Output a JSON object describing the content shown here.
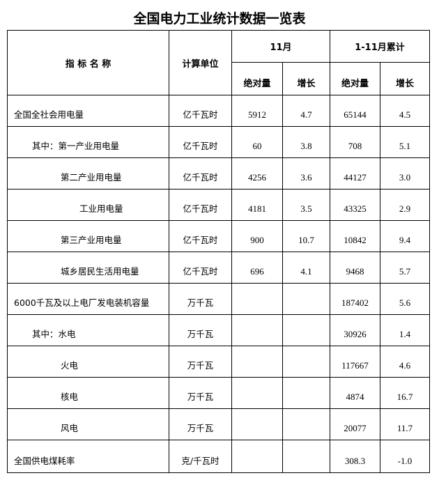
{
  "title": "全国电力工业统计数据一览表",
  "headers": {
    "name": "指 标 名 称",
    "unit": "计算单位",
    "month": "11月",
    "cumulative": "1-11月累计",
    "absolute": "绝对量",
    "growth": "增长"
  },
  "rows": [
    {
      "name": "全国全社会用电量",
      "level": 0,
      "unit": "亿千瓦时",
      "m_abs": "5912",
      "m_growth": "4.7",
      "c_abs": "65144",
      "c_growth": "4.5"
    },
    {
      "name": "其中：第一产业用电量",
      "level": 1,
      "unit": "亿千瓦时",
      "m_abs": "60",
      "m_growth": "3.8",
      "c_abs": "708",
      "c_growth": "5.1"
    },
    {
      "name": "第二产业用电量",
      "level": 2,
      "unit": "亿千瓦时",
      "m_abs": "4256",
      "m_growth": "3.6",
      "c_abs": "44127",
      "c_growth": "3.0"
    },
    {
      "name": "工业用电量",
      "level": 3,
      "unit": "亿千瓦时",
      "m_abs": "4181",
      "m_growth": "3.5",
      "c_abs": "43325",
      "c_growth": "2.9"
    },
    {
      "name": "第三产业用电量",
      "level": 2,
      "unit": "亿千瓦时",
      "m_abs": "900",
      "m_growth": "10.7",
      "c_abs": "10842",
      "c_growth": "9.4"
    },
    {
      "name": "城乡居民生活用电量",
      "level": 2,
      "unit": "亿千瓦时",
      "m_abs": "696",
      "m_growth": "4.1",
      "c_abs": "9468",
      "c_growth": "5.7"
    },
    {
      "name": "6000千瓦及以上电厂发电装机容量",
      "level": 0,
      "unit": "万千瓦",
      "m_abs": "",
      "m_growth": "",
      "c_abs": "187402",
      "c_growth": "5.6"
    },
    {
      "name": "其中：水电",
      "level": 1,
      "unit": "万千瓦",
      "m_abs": "",
      "m_growth": "",
      "c_abs": "30926",
      "c_growth": "1.4"
    },
    {
      "name": "火电",
      "level": 2,
      "unit": "万千瓦",
      "m_abs": "",
      "m_growth": "",
      "c_abs": "117667",
      "c_growth": "4.6"
    },
    {
      "name": "核电",
      "level": 2,
      "unit": "万千瓦",
      "m_abs": "",
      "m_growth": "",
      "c_abs": "4874",
      "c_growth": "16.7"
    },
    {
      "name": "风电",
      "level": 2,
      "unit": "万千瓦",
      "m_abs": "",
      "m_growth": "",
      "c_abs": "20077",
      "c_growth": "11.7"
    },
    {
      "name": "全国供电煤耗率",
      "level": 0,
      "unit": "克/千瓦时",
      "m_abs": "",
      "m_growth": "",
      "c_abs": "308.3",
      "c_growth": "-1.0"
    }
  ]
}
